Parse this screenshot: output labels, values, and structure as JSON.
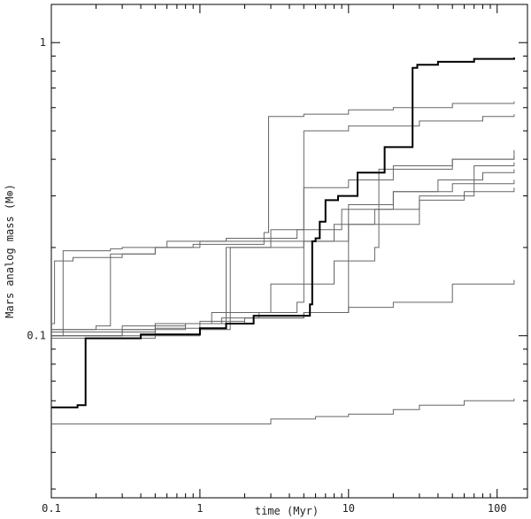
{
  "chart_data": {
    "type": "line",
    "xlabel": "time (Myr)",
    "ylabel": "Mars analog mass (M⊕)",
    "x_scale": "log",
    "y_scale": "log",
    "xlim": [
      0.1,
      160
    ],
    "ylim": [
      0.028,
      1.35
    ],
    "x_tick_labels": [
      {
        "value": 0.1,
        "label": "0.1"
      },
      {
        "value": 1,
        "label": "1"
      },
      {
        "value": 10,
        "label": "10"
      },
      {
        "value": 100,
        "label": "100"
      }
    ],
    "y_tick_labels": [
      {
        "value": 0.1,
        "label": "0.1"
      },
      {
        "value": 1,
        "label": "1"
      }
    ],
    "grid": false,
    "series": [
      {
        "style": "thick",
        "color": "#000000",
        "x": [
          0.1,
          0.15,
          0.17,
          0.4,
          1.0,
          1.5,
          2.3,
          5.5,
          5.7,
          6.0,
          6.4,
          7.0,
          8.5,
          11.5,
          17.5,
          27,
          29,
          40,
          70,
          130
        ],
        "y": [
          0.057,
          0.058,
          0.098,
          0.101,
          0.106,
          0.11,
          0.117,
          0.128,
          0.21,
          0.215,
          0.245,
          0.29,
          0.3,
          0.36,
          0.44,
          0.82,
          0.84,
          0.86,
          0.88,
          0.89
        ]
      },
      {
        "style": "thin",
        "color": "#666666",
        "x": [
          0.1,
          0.105,
          0.14,
          0.3,
          0.5,
          1.0,
          2.7,
          2.9,
          5.0,
          10,
          20,
          50,
          130
        ],
        "y": [
          0.11,
          0.18,
          0.185,
          0.19,
          0.2,
          0.205,
          0.225,
          0.56,
          0.57,
          0.59,
          0.6,
          0.62,
          0.63
        ]
      },
      {
        "style": "thin",
        "color": "#666666",
        "x": [
          0.1,
          0.12,
          0.25,
          0.3,
          0.6,
          1.5,
          4.5,
          5,
          10,
          30,
          80,
          130
        ],
        "y": [
          0.1,
          0.195,
          0.198,
          0.2,
          0.21,
          0.215,
          0.23,
          0.5,
          0.52,
          0.54,
          0.56,
          0.57
        ]
      },
      {
        "style": "thin",
        "color": "#666666",
        "x": [
          0.1,
          0.3,
          0.8,
          1.4,
          1.5,
          3,
          8,
          15,
          30,
          60,
          130
        ],
        "y": [
          0.1,
          0.108,
          0.11,
          0.115,
          0.2,
          0.21,
          0.24,
          0.27,
          0.29,
          0.31,
          0.32
        ]
      },
      {
        "style": "thin",
        "color": "#666666",
        "x": [
          0.1,
          0.2,
          0.25,
          0.5,
          0.9,
          1.0,
          3,
          9,
          20,
          50,
          130
        ],
        "y": [
          0.105,
          0.108,
          0.19,
          0.2,
          0.205,
          0.21,
          0.23,
          0.27,
          0.31,
          0.33,
          0.34
        ]
      },
      {
        "style": "thin",
        "color": "#666666",
        "x": [
          0.1,
          0.3,
          0.8,
          1.2,
          3,
          8,
          15,
          16,
          20,
          50,
          130
        ],
        "y": [
          0.1,
          0.105,
          0.11,
          0.12,
          0.15,
          0.18,
          0.2,
          0.37,
          0.38,
          0.4,
          0.41
        ]
      },
      {
        "style": "thin",
        "color": "#666666",
        "x": [
          0.1,
          0.5,
          1.5,
          2.5,
          4.5,
          5,
          10,
          20,
          50,
          130
        ],
        "y": [
          0.1,
          0.11,
          0.115,
          0.12,
          0.13,
          0.32,
          0.34,
          0.37,
          0.4,
          0.43
        ]
      },
      {
        "style": "thin",
        "color": "#666666",
        "x": [
          0.1,
          0.5,
          1.0,
          2.0,
          5,
          10,
          20,
          40,
          80,
          130
        ],
        "y": [
          0.105,
          0.11,
          0.112,
          0.115,
          0.12,
          0.28,
          0.31,
          0.34,
          0.36,
          0.37
        ]
      },
      {
        "style": "thin",
        "color": "#666666",
        "x": [
          0.1,
          0.5,
          1.0,
          1.6,
          5,
          10,
          30,
          70,
          130
        ],
        "y": [
          0.098,
          0.1,
          0.105,
          0.2,
          0.21,
          0.24,
          0.3,
          0.38,
          0.39
        ]
      },
      {
        "style": "thin",
        "color": "#666666",
        "x": [
          0.1,
          0.5,
          1,
          2,
          5,
          10,
          20,
          50,
          130
        ],
        "y": [
          0.103,
          0.106,
          0.11,
          0.115,
          0.12,
          0.125,
          0.13,
          0.15,
          0.155
        ]
      },
      {
        "style": "thin",
        "color": "#666666",
        "x": [
          0.1,
          1,
          3,
          6,
          10,
          20,
          30,
          60,
          130
        ],
        "y": [
          0.05,
          0.05,
          0.052,
          0.053,
          0.054,
          0.056,
          0.058,
          0.06,
          0.061
        ]
      }
    ]
  }
}
